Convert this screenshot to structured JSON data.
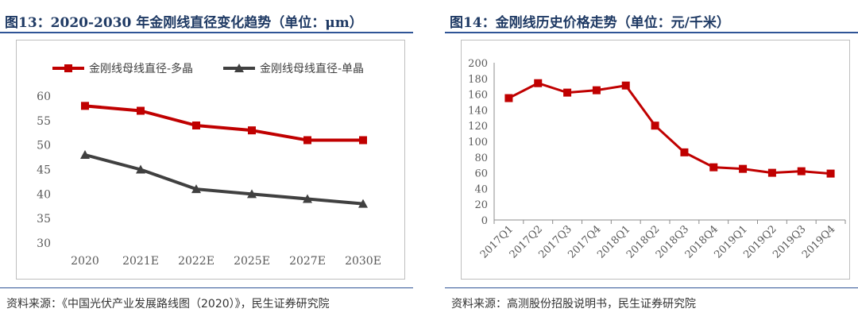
{
  "left": {
    "title": "图13：2020-2030 年金刚线直径变化趋势（单位：μm）",
    "source": "资料来源：《中国光伏产业发展路线图（2020）》，民生证券研究院",
    "chart_data": {
      "type": "line",
      "categories": [
        "2020",
        "2021E",
        "2022E",
        "2025E",
        "2027E",
        "2030E"
      ],
      "series": [
        {
          "name": "金刚线母线直径-多晶",
          "values": [
            58,
            57,
            54,
            53,
            51,
            51
          ],
          "color": "#c00000",
          "marker": "square"
        },
        {
          "name": "金刚线母线直径-单晶",
          "values": [
            48,
            45,
            41,
            40,
            39,
            38
          ],
          "color": "#404040",
          "marker": "triangle"
        }
      ],
      "ylim": [
        30,
        60
      ],
      "yticks": [
        30,
        35,
        40,
        45,
        50,
        55,
        60
      ],
      "legend_position": "top",
      "grid": false
    }
  },
  "right": {
    "title": "图14：金刚线历史价格走势（单位：元/千米）",
    "source": "资料来源：高测股份招股说明书，民生证券研究院",
    "chart_data": {
      "type": "line",
      "categories": [
        "2017Q1",
        "2017Q2",
        "2017Q3",
        "2017Q4",
        "2018Q1",
        "2018Q2",
        "2018Q3",
        "2018Q4",
        "2019Q1",
        "2019Q2",
        "2019Q3",
        "2019Q4"
      ],
      "series": [
        {
          "values": [
            155,
            174,
            162,
            165,
            171,
            120,
            86,
            67,
            65,
            60,
            62,
            59
          ],
          "color": "#c00000",
          "marker": "square"
        }
      ],
      "ylim": [
        0,
        200
      ],
      "yticks": [
        0,
        20,
        40,
        60,
        80,
        100,
        120,
        140,
        160,
        180,
        200
      ],
      "grid": false
    }
  }
}
